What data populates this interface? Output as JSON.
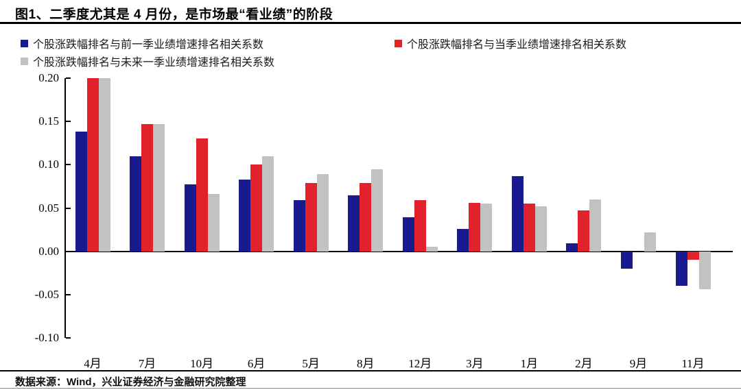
{
  "title": "图1、二季度尤其是 4 月份，是市场最“看业绩”的阶段",
  "legend": {
    "items": [
      {
        "label": "个股涨跌幅排名与前一季业绩增速排名相关系数",
        "color": "#181a8d"
      },
      {
        "label": "个股涨跌幅排名与当季业绩增速排名相关系数",
        "color": "#e2222a"
      },
      {
        "label": "个股涨跌幅排名与未来一季业绩增速排名相关系数",
        "color": "#c2c2c2"
      }
    ]
  },
  "source": "数据来源：Wind，兴业证券经济与金融研究院整理",
  "colors": {
    "axis": "#000000",
    "background": "#ffffff"
  },
  "chart_data": {
    "type": "bar",
    "categories": [
      "4月",
      "7月",
      "10月",
      "6月",
      "5月",
      "8月",
      "12月",
      "3月",
      "1月",
      "2月",
      "9月",
      "11月"
    ],
    "series": [
      {
        "name": "个股涨跌幅排名与前一季业绩增速排名相关系数",
        "color": "#181a8d",
        "values": [
          0.138,
          0.11,
          0.077,
          0.083,
          0.059,
          0.065,
          0.039,
          0.026,
          0.087,
          0.009,
          -0.02,
          -0.04
        ]
      },
      {
        "name": "个股涨跌幅排名与当季业绩增速排名相关系数",
        "color": "#e2222a",
        "values": [
          0.2,
          0.147,
          0.13,
          0.1,
          0.079,
          0.079,
          0.059,
          0.056,
          0.055,
          0.047,
          0.0,
          -0.01
        ]
      },
      {
        "name": "个股涨跌幅排名与未来一季业绩增速排名相关系数",
        "color": "#c2c2c2",
        "values": [
          0.2,
          0.147,
          0.066,
          0.11,
          0.089,
          0.095,
          0.005,
          0.055,
          0.052,
          0.06,
          0.022,
          -0.044
        ]
      }
    ],
    "ylim": [
      -0.1,
      0.2
    ],
    "yticks": [
      0.2,
      0.15,
      0.1,
      0.05,
      0.0,
      -0.05,
      -0.1
    ],
    "ytick_labels": [
      "0.20",
      "0.15",
      "0.10",
      "0.05",
      "0.00",
      "-0.05",
      "-0.10"
    ],
    "grid": false,
    "legend_position": "top"
  }
}
